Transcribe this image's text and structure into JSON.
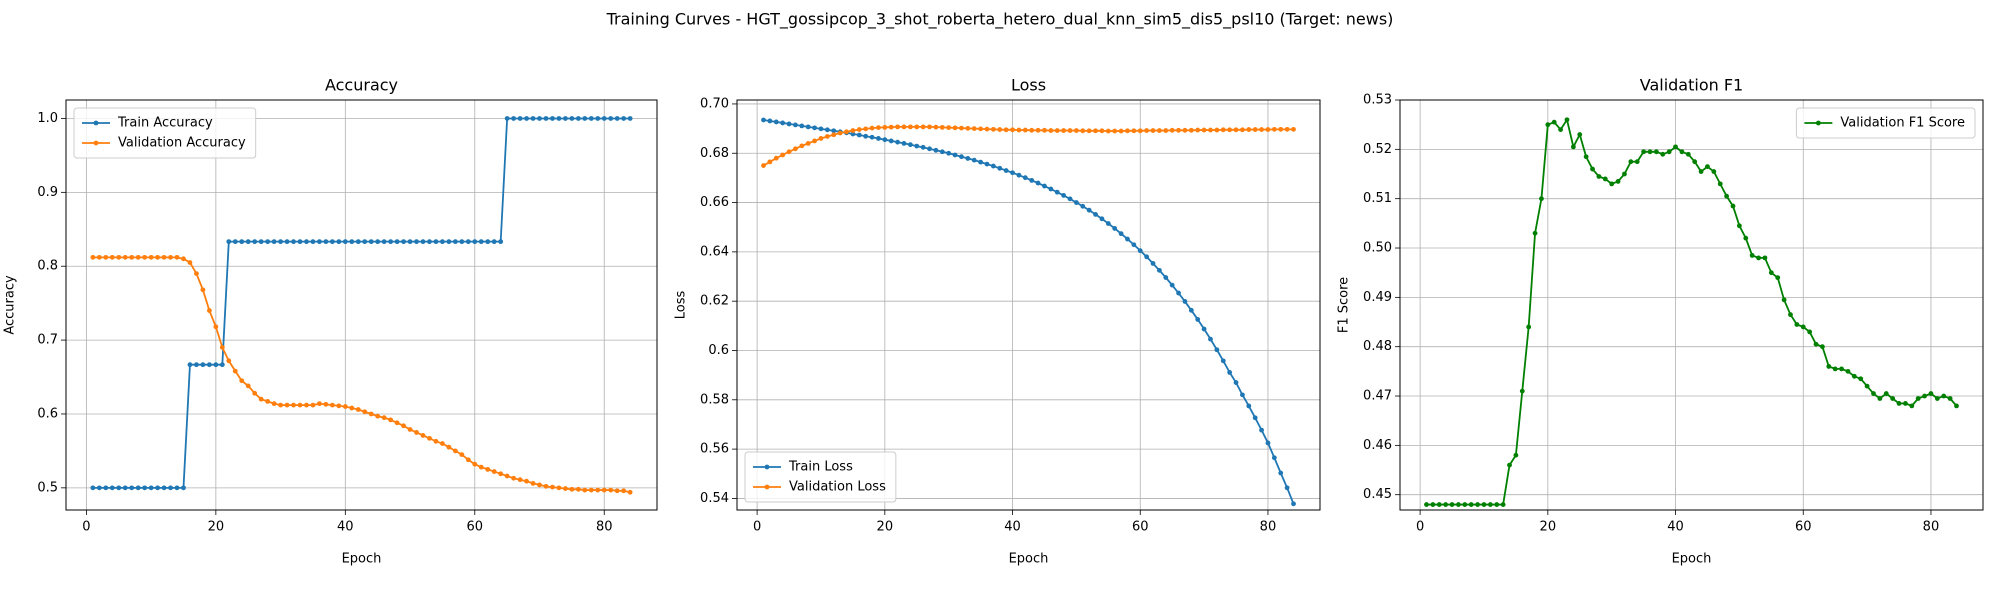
{
  "title": "Training Curves - HGT_gossipcop_3_shot_roberta_hetero_dual_knn_sim5_dis5_psl10 (Target: news)",
  "chart_data": [
    {
      "type": "line",
      "title": "Accuracy",
      "x_label": "Epoch",
      "y_label": "Accuracy",
      "grid": true,
      "legend": "upper left",
      "x": [
        1,
        2,
        3,
        4,
        5,
        6,
        7,
        8,
        9,
        10,
        11,
        12,
        13,
        14,
        15,
        16,
        17,
        18,
        19,
        20,
        21,
        22,
        23,
        24,
        25,
        26,
        27,
        28,
        29,
        30,
        31,
        32,
        33,
        34,
        35,
        36,
        37,
        38,
        39,
        40,
        41,
        42,
        43,
        44,
        45,
        46,
        47,
        48,
        49,
        50,
        51,
        52,
        53,
        54,
        55,
        56,
        57,
        58,
        59,
        60,
        61,
        62,
        63,
        64,
        65,
        66,
        67,
        68,
        69,
        70,
        71,
        72,
        73,
        74,
        75,
        76,
        77,
        78,
        79,
        80,
        81,
        82,
        83,
        84
      ],
      "xlim": [
        -3.15,
        88.15
      ],
      "xticks": [
        0,
        20,
        40,
        60,
        80
      ],
      "ylim": [
        0.47,
        1.025
      ],
      "yticks": [
        0.5,
        0.6,
        0.7,
        0.8,
        0.9,
        {
          "value": 1.0,
          "label": "1.0"
        }
      ],
      "series": [
        {
          "name": "Train Accuracy",
          "color": "#1f77b4",
          "values": [
            0.5,
            0.5,
            0.5,
            0.5,
            0.5,
            0.5,
            0.5,
            0.5,
            0.5,
            0.5,
            0.5,
            0.5,
            0.5,
            0.5,
            0.5,
            0.6667,
            0.6667,
            0.6667,
            0.6667,
            0.6667,
            0.6667,
            0.8333,
            0.8333,
            0.8333,
            0.8333,
            0.8333,
            0.8333,
            0.8333,
            0.8333,
            0.8333,
            0.8333,
            0.8333,
            0.8333,
            0.8333,
            0.8333,
            0.8333,
            0.8333,
            0.8333,
            0.8333,
            0.8333,
            0.8333,
            0.8333,
            0.8333,
            0.8333,
            0.8333,
            0.8333,
            0.8333,
            0.8333,
            0.8333,
            0.8333,
            0.8333,
            0.8333,
            0.8333,
            0.8333,
            0.8333,
            0.8333,
            0.8333,
            0.8333,
            0.8333,
            0.8333,
            0.8333,
            0.8333,
            0.8333,
            0.8333,
            1.0,
            1.0,
            1.0,
            1.0,
            1.0,
            1.0,
            1.0,
            1.0,
            1.0,
            1.0,
            1.0,
            1.0,
            1.0,
            1.0,
            1.0,
            1.0,
            1.0,
            1.0,
            1.0,
            1.0
          ]
        },
        {
          "name": "Validation Accuracy",
          "color": "#ff7f0e",
          "values": [
            0.812,
            0.812,
            0.812,
            0.812,
            0.812,
            0.812,
            0.812,
            0.812,
            0.812,
            0.812,
            0.812,
            0.812,
            0.812,
            0.812,
            0.81,
            0.805,
            0.79,
            0.768,
            0.74,
            0.718,
            0.69,
            0.672,
            0.658,
            0.645,
            0.638,
            0.628,
            0.62,
            0.617,
            0.614,
            0.612,
            0.612,
            0.612,
            0.612,
            0.612,
            0.612,
            0.614,
            0.613,
            0.612,
            0.611,
            0.61,
            0.608,
            0.606,
            0.603,
            0.6,
            0.597,
            0.595,
            0.592,
            0.588,
            0.584,
            0.579,
            0.575,
            0.571,
            0.567,
            0.563,
            0.56,
            0.555,
            0.55,
            0.545,
            0.538,
            0.532,
            0.528,
            0.525,
            0.522,
            0.519,
            0.516,
            0.513,
            0.511,
            0.509,
            0.506,
            0.504,
            0.502,
            0.501,
            0.5,
            0.499,
            0.498,
            0.498,
            0.497,
            0.497,
            0.497,
            0.497,
            0.497,
            0.496,
            0.496,
            0.494
          ]
        }
      ]
    },
    {
      "type": "line",
      "title": "Loss",
      "x_label": "Epoch",
      "y_label": "Loss",
      "grid": true,
      "legend": "lower left",
      "x": [
        1,
        2,
        3,
        4,
        5,
        6,
        7,
        8,
        9,
        10,
        11,
        12,
        13,
        14,
        15,
        16,
        17,
        18,
        19,
        20,
        21,
        22,
        23,
        24,
        25,
        26,
        27,
        28,
        29,
        30,
        31,
        32,
        33,
        34,
        35,
        36,
        37,
        38,
        39,
        40,
        41,
        42,
        43,
        44,
        45,
        46,
        47,
        48,
        49,
        50,
        51,
        52,
        53,
        54,
        55,
        56,
        57,
        58,
        59,
        60,
        61,
        62,
        63,
        64,
        65,
        66,
        67,
        68,
        69,
        70,
        71,
        72,
        73,
        74,
        75,
        76,
        77,
        78,
        79,
        80,
        81,
        82,
        83,
        84
      ],
      "xlim": [
        -3.15,
        88.15
      ],
      "xticks": [
        0,
        20,
        40,
        60,
        80
      ],
      "ylim": [
        0.5353,
        0.7016
      ],
      "yticks": [
        0.54,
        0.56,
        0.58,
        0.6,
        0.62,
        0.64,
        0.66,
        0.68,
        {
          "value": 0.7,
          "label": "0.70"
        }
      ],
      "series": [
        {
          "name": "Train Loss",
          "color": "#1f77b4",
          "values": [
            0.6935,
            0.6931,
            0.6927,
            0.6923,
            0.6919,
            0.6915,
            0.6911,
            0.6907,
            0.6903,
            0.6899,
            0.6895,
            0.6891,
            0.6887,
            0.6883,
            0.6878,
            0.6874,
            0.6869,
            0.6865,
            0.686,
            0.6855,
            0.685,
            0.6845,
            0.684,
            0.6835,
            0.6829,
            0.6824,
            0.6818,
            0.6812,
            0.6806,
            0.68,
            0.6793,
            0.6786,
            0.6779,
            0.6772,
            0.6764,
            0.6756,
            0.6748,
            0.6739,
            0.673,
            0.6721,
            0.6711,
            0.6701,
            0.669,
            0.6679,
            0.6667,
            0.6655,
            0.6642,
            0.6629,
            0.6615,
            0.66,
            0.6585,
            0.6569,
            0.6552,
            0.6534,
            0.6515,
            0.6495,
            0.6474,
            0.6452,
            0.6429,
            0.6405,
            0.638,
            0.6353,
            0.6325,
            0.6296,
            0.6265,
            0.6233,
            0.6199,
            0.6163,
            0.6126,
            0.6087,
            0.6046,
            0.6003,
            0.5958,
            0.5911,
            0.587,
            0.582,
            0.5775,
            0.5727,
            0.5677,
            0.5625,
            0.5565,
            0.5503,
            0.5443,
            0.5378
          ]
        },
        {
          "name": "Validation Loss",
          "color": "#ff7f0e",
          "values": [
            0.675,
            0.6765,
            0.678,
            0.6793,
            0.6806,
            0.6818,
            0.683,
            0.684,
            0.685,
            0.686,
            0.6868,
            0.6875,
            0.6882,
            0.6887,
            0.6892,
            0.6896,
            0.6899,
            0.6902,
            0.6904,
            0.6905,
            0.6906,
            0.6907,
            0.6907,
            0.6907,
            0.6907,
            0.6907,
            0.6907,
            0.6906,
            0.6905,
            0.6904,
            0.6903,
            0.6902,
            0.6901,
            0.69,
            0.6899,
            0.6898,
            0.6897,
            0.6896,
            0.6895,
            0.6895,
            0.6894,
            0.6894,
            0.6893,
            0.6893,
            0.6893,
            0.6892,
            0.6892,
            0.6892,
            0.6892,
            0.6892,
            0.6891,
            0.6891,
            0.6891,
            0.6891,
            0.689,
            0.689,
            0.689,
            0.6891,
            0.6891,
            0.6891,
            0.6892,
            0.6892,
            0.6892,
            0.6892,
            0.6893,
            0.6893,
            0.6893,
            0.6893,
            0.6894,
            0.6894,
            0.6894,
            0.6894,
            0.6895,
            0.6895,
            0.6895,
            0.6895,
            0.6896,
            0.6896,
            0.6896,
            0.6896,
            0.6897,
            0.6897,
            0.6897,
            0.6897
          ]
        }
      ]
    },
    {
      "type": "line",
      "title": "Validation F1",
      "x_label": "Epoch",
      "y_label": "F1 Score",
      "grid": true,
      "legend": "upper right",
      "x": [
        1,
        2,
        3,
        4,
        5,
        6,
        7,
        8,
        9,
        10,
        11,
        12,
        13,
        14,
        15,
        16,
        17,
        18,
        19,
        20,
        21,
        22,
        23,
        24,
        25,
        26,
        27,
        28,
        29,
        30,
        31,
        32,
        33,
        34,
        35,
        36,
        37,
        38,
        39,
        40,
        41,
        42,
        43,
        44,
        45,
        46,
        47,
        48,
        49,
        50,
        51,
        52,
        53,
        54,
        55,
        56,
        57,
        58,
        59,
        60,
        61,
        62,
        63,
        64,
        65,
        66,
        67,
        68,
        69,
        70,
        71,
        72,
        73,
        74,
        75,
        76,
        77,
        78,
        79,
        80,
        81,
        82,
        83,
        84
      ],
      "xlim": [
        -3.15,
        88.15
      ],
      "xticks": [
        0,
        20,
        40,
        60,
        80
      ],
      "ylim": [
        0.4469,
        0.53
      ],
      "yticks": [
        0.45,
        0.46,
        0.47,
        0.48,
        0.49,
        {
          "value": 0.5,
          "label": "0.50"
        },
        0.51,
        0.52,
        0.53
      ],
      "series": [
        {
          "name": "Validation F1 Score",
          "color": "#008000",
          "values": [
            0.448,
            0.448,
            0.448,
            0.448,
            0.448,
            0.448,
            0.448,
            0.448,
            0.448,
            0.448,
            0.448,
            0.448,
            0.448,
            0.456,
            0.458,
            0.471,
            0.484,
            0.503,
            0.51,
            0.525,
            0.5255,
            0.524,
            0.526,
            0.5205,
            0.523,
            0.5185,
            0.516,
            0.5145,
            0.514,
            0.513,
            0.5135,
            0.515,
            0.5175,
            0.5175,
            0.5195,
            0.5195,
            0.5195,
            0.519,
            0.5195,
            0.5205,
            0.5195,
            0.519,
            0.5175,
            0.5155,
            0.5165,
            0.5155,
            0.513,
            0.5105,
            0.5085,
            0.5045,
            0.502,
            0.4985,
            0.498,
            0.498,
            0.495,
            0.494,
            0.4895,
            0.4865,
            0.4845,
            0.484,
            0.483,
            0.4805,
            0.48,
            0.476,
            0.4755,
            0.4755,
            0.475,
            0.474,
            0.4735,
            0.472,
            0.4705,
            0.4695,
            0.4705,
            0.4695,
            0.4685,
            0.4685,
            0.468,
            0.4695,
            0.47,
            0.4705,
            0.4695,
            0.47,
            0.4695,
            0.468
          ]
        }
      ]
    }
  ]
}
